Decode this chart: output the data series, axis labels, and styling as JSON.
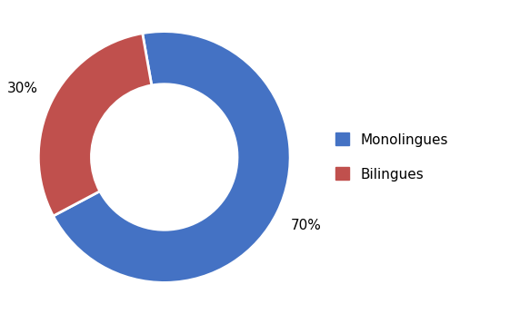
{
  "labels": [
    "Monolingues",
    "Bilingues"
  ],
  "values": [
    70,
    30
  ],
  "colors": [
    "#4472C4",
    "#C0504D"
  ],
  "autopct_labels": [
    "70%",
    "30%"
  ],
  "legend_labels": [
    "Monolingues",
    "Bilingues"
  ],
  "background_color": "#ffffff",
  "donut_width": 0.42,
  "startangle": 100,
  "label_fontsize": 11,
  "legend_fontsize": 11
}
